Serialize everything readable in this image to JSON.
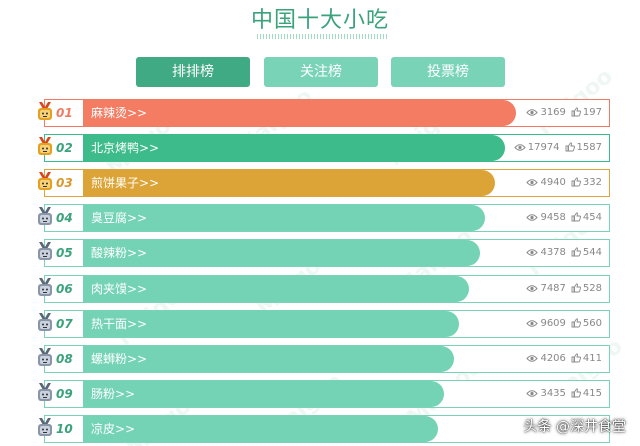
{
  "title": "中国十大小吃",
  "tabs": [
    {
      "label": "排排榜"
    },
    {
      "label": "关注榜"
    },
    {
      "label": "投票榜"
    }
  ],
  "watermark": "Maigoo",
  "items": [
    {
      "rank": "01",
      "name": "麻辣烫>>",
      "views": "3169",
      "likes": "197",
      "tier": "red",
      "fill": 0.84,
      "color": "#f47c63"
    },
    {
      "rank": "02",
      "name": "北京烤鸭>>",
      "views": "17974",
      "likes": "1587",
      "tier": "green",
      "fill": 0.82,
      "color": "#3dbb8a"
    },
    {
      "rank": "03",
      "name": "煎饼果子>>",
      "views": "4940",
      "likes": "332",
      "tier": "gold",
      "fill": 0.8,
      "color": "#dca436"
    },
    {
      "rank": "04",
      "name": "臭豆腐>>",
      "views": "9458",
      "likes": "454",
      "tier": "silver",
      "fill": 0.78,
      "color": "#74d3b4"
    },
    {
      "rank": "05",
      "name": "酸辣粉>>",
      "views": "4378",
      "likes": "544",
      "tier": "silver",
      "fill": 0.77,
      "color": "#74d3b4"
    },
    {
      "rank": "06",
      "name": "肉夹馍>>",
      "views": "7487",
      "likes": "528",
      "tier": "silver",
      "fill": 0.75,
      "color": "#74d3b4"
    },
    {
      "rank": "07",
      "name": "热干面>>",
      "views": "9609",
      "likes": "560",
      "tier": "silver",
      "fill": 0.73,
      "color": "#74d3b4"
    },
    {
      "rank": "08",
      "name": "螺蛳粉>>",
      "views": "4206",
      "likes": "411",
      "tier": "silver",
      "fill": 0.72,
      "color": "#74d3b4"
    },
    {
      "rank": "09",
      "name": "肠粉>>",
      "views": "3435",
      "likes": "415",
      "tier": "silver",
      "fill": 0.7,
      "color": "#74d3b4"
    },
    {
      "rank": "10",
      "name": "凉皮>>",
      "views": "",
      "likes": "",
      "tier": "silver",
      "fill": 0.69,
      "color": "#74d3b4"
    }
  ],
  "footer": "头条 @深井食堂"
}
